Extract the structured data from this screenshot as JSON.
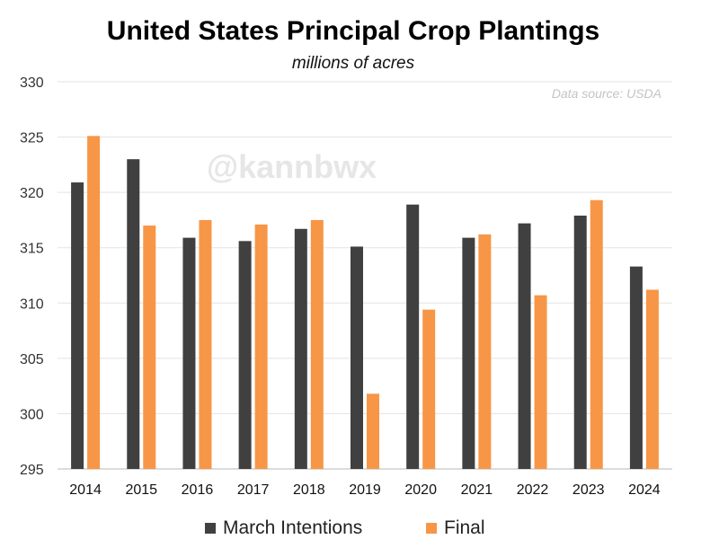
{
  "chart_data": {
    "type": "bar",
    "title": "United States Principal Crop Plantings",
    "subtitle": "millions of acres",
    "source_note": "Data source: USDA",
    "watermark": "@kannbwx",
    "categories": [
      "2014",
      "2015",
      "2016",
      "2017",
      "2018",
      "2019",
      "2020",
      "2021",
      "2022",
      "2023",
      "2024"
    ],
    "series": [
      {
        "name": "March Intentions",
        "color": "#404040",
        "values": [
          320.9,
          323.0,
          315.9,
          315.6,
          316.7,
          315.1,
          318.9,
          315.9,
          317.2,
          317.9,
          313.3
        ]
      },
      {
        "name": "Final",
        "color": "#f79646",
        "values": [
          325.1,
          317.0,
          317.5,
          317.1,
          317.5,
          301.8,
          309.4,
          316.2,
          310.7,
          319.3,
          311.2
        ]
      }
    ],
    "ylim": [
      295,
      330
    ],
    "yticks": [
      295,
      300,
      305,
      310,
      315,
      320,
      325,
      330
    ],
    "grid": true,
    "legend": "bottom"
  }
}
